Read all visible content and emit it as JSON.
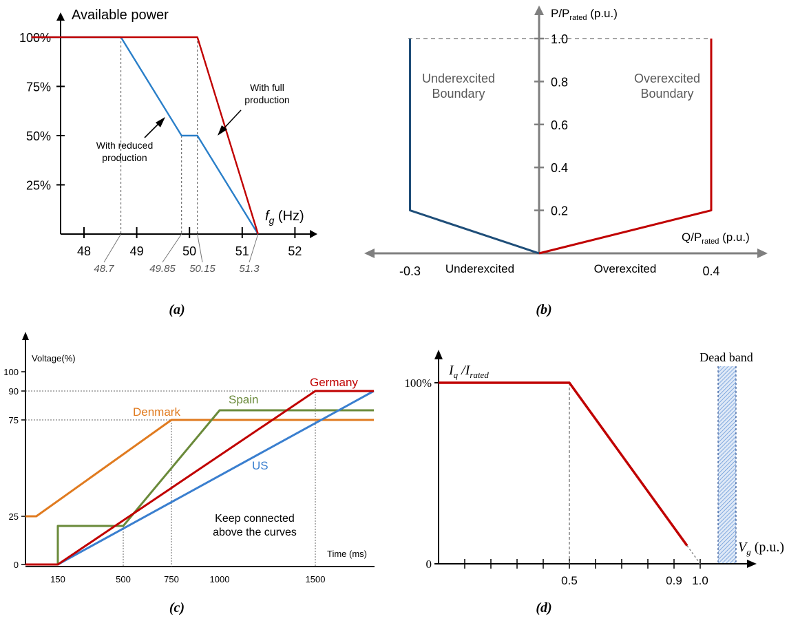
{
  "chart_data": [
    {
      "panel": "(a)",
      "type": "line",
      "ylabel": "Available power",
      "xlabel_main": "f",
      "xlabel_sub": "g",
      "xlabel_unit": " (Hz)",
      "xticks": [
        "48",
        "49",
        "50",
        "51",
        "52"
      ],
      "yticks": [
        "100%",
        "75%",
        "50%",
        "25%"
      ],
      "annot_ticks": [
        "48.7",
        "49.85",
        "50.15",
        "51.3"
      ],
      "series": [
        {
          "x": [
            47.0,
            48.7,
            49.85,
            50.15,
            51.3
          ],
          "y": [
            100,
            100,
            50,
            50,
            0
          ],
          "color": "#2a7fc9"
        },
        {
          "x": [
            47.0,
            50.15,
            51.3
          ],
          "y": [
            100,
            100,
            0
          ],
          "color": "#c00000"
        }
      ],
      "annotations": {
        "full_line1": "With full",
        "full_line2": "production",
        "reduced_line1": "With reduced",
        "reduced_line2": "production"
      }
    },
    {
      "panel": "(b)",
      "type": "line",
      "ylabel_main": "P/P",
      "ylabel_sub": "rated",
      "ylabel_unit": " (p.u.)",
      "xlabel_main": "Q/P",
      "xlabel_sub": "rated",
      "xlabel_unit": " (p.u.)",
      "yticks": [
        "1.0",
        "0.8",
        "0.6",
        "0.4",
        "0.2"
      ],
      "xticks": [
        "-0.3",
        "0.4"
      ],
      "region_left": "Underexcited",
      "region_right": "Overexcited",
      "boundary_left_line1": "Underexcited",
      "boundary_left_line2": "Boundary",
      "boundary_right_line1": "Overexcited",
      "boundary_right_line2": "Boundary",
      "series": [
        {
          "x": [
            0,
            -0.3,
            -0.3
          ],
          "y": [
            0,
            0.2,
            1.0
          ],
          "color": "#1f4e79"
        },
        {
          "x": [
            0,
            0.4,
            0.4
          ],
          "y": [
            0,
            0.2,
            1.0
          ],
          "color": "#c00000"
        }
      ]
    },
    {
      "panel": "(c)",
      "type": "line",
      "ylabel": "Voltage(%)",
      "xlabel": "Time (ms)",
      "yticks": [
        "100",
        "90",
        "75",
        "25",
        "0"
      ],
      "xticks": [
        "150",
        "500",
        "750",
        "1000",
        "1500"
      ],
      "note_line1": "Keep connected",
      "note_line2": "above the curves",
      "series": [
        {
          "name": "Germany",
          "x": [
            0,
            150,
            1500,
            1800
          ],
          "y": [
            0,
            0,
            90,
            90
          ],
          "color": "#c00000"
        },
        {
          "name": "Spain",
          "x": [
            150,
            150,
            500,
            1000,
            1800
          ],
          "y": [
            0,
            20,
            20,
            80,
            80
          ],
          "color": "#6a8a3a"
        },
        {
          "name": "Denmark",
          "x": [
            0,
            50,
            750,
            1800
          ],
          "y": [
            25,
            25,
            75,
            75
          ],
          "color": "#e07b20"
        },
        {
          "name": "US",
          "x": [
            150,
            1800
          ],
          "y": [
            0,
            90
          ],
          "color": "#3a7fcf"
        }
      ]
    },
    {
      "panel": "(d)",
      "type": "line",
      "ylabel_main": "I",
      "ylabel_sub1": "q",
      "ylabel_mid": " /I",
      "ylabel_sub2": "rated",
      "xlabel_main": "V",
      "xlabel_sub": "g",
      "xlabel_unit": " (p.u.)",
      "yticks": [
        "100%",
        "0"
      ],
      "xticks": [
        "0.5",
        "0.9",
        "1.0"
      ],
      "deadband_label": "Dead band",
      "series": [
        {
          "x": [
            0,
            0.5,
            0.95
          ],
          "y": [
            100,
            100,
            10
          ],
          "color": "#c00000"
        }
      ]
    }
  ],
  "captions": [
    "(a)",
    "(b)",
    "(c)",
    "(d)"
  ]
}
